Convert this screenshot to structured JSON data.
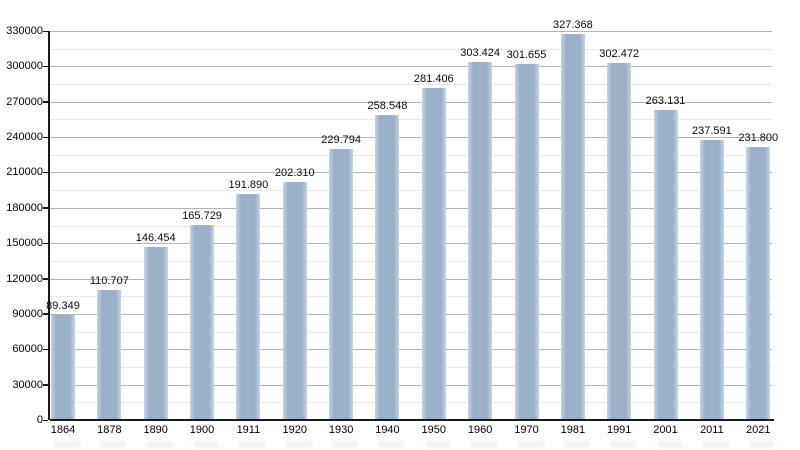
{
  "chart_data": {
    "type": "bar",
    "title": "",
    "xlabel": "",
    "ylabel": "",
    "categories": [
      "1864",
      "1878",
      "1890",
      "1900",
      "1911",
      "1920",
      "1930",
      "1940",
      "1950",
      "1960",
      "1970",
      "1981",
      "1991",
      "2001",
      "2011",
      "2021"
    ],
    "values": [
      89349,
      110707,
      146454,
      165729,
      191890,
      202310,
      229794,
      258548,
      281406,
      303424,
      301655,
      327368,
      302472,
      263131,
      237591,
      231800
    ],
    "value_labels": [
      "89.349",
      "110.707",
      "146.454",
      "165.729",
      "191.890",
      "202.310",
      "229.794",
      "258.548",
      "281.406",
      "303.424",
      "301.655",
      "327.368",
      "302.472",
      "263.131",
      "237.591",
      "231.800"
    ],
    "y_axis": {
      "min": 0,
      "max": 330000,
      "major_step": 30000,
      "minor_step": 15000,
      "tick_labels": [
        "0",
        "30000",
        "60000",
        "90000",
        "120000",
        "150000",
        "180000",
        "210000",
        "240000",
        "270000",
        "300000",
        "330000"
      ]
    },
    "grid": "horizontal major and minor, on",
    "legend": "none",
    "colors": {
      "bar": "#9ab1c9",
      "bar_edge_light": "#c6d4e1",
      "grid_major": "#b3b3b3",
      "grid_minor": "#e8e8e8",
      "axis": "#1a1a1a",
      "label_text": "#000000",
      "background": "#ffffff"
    }
  }
}
